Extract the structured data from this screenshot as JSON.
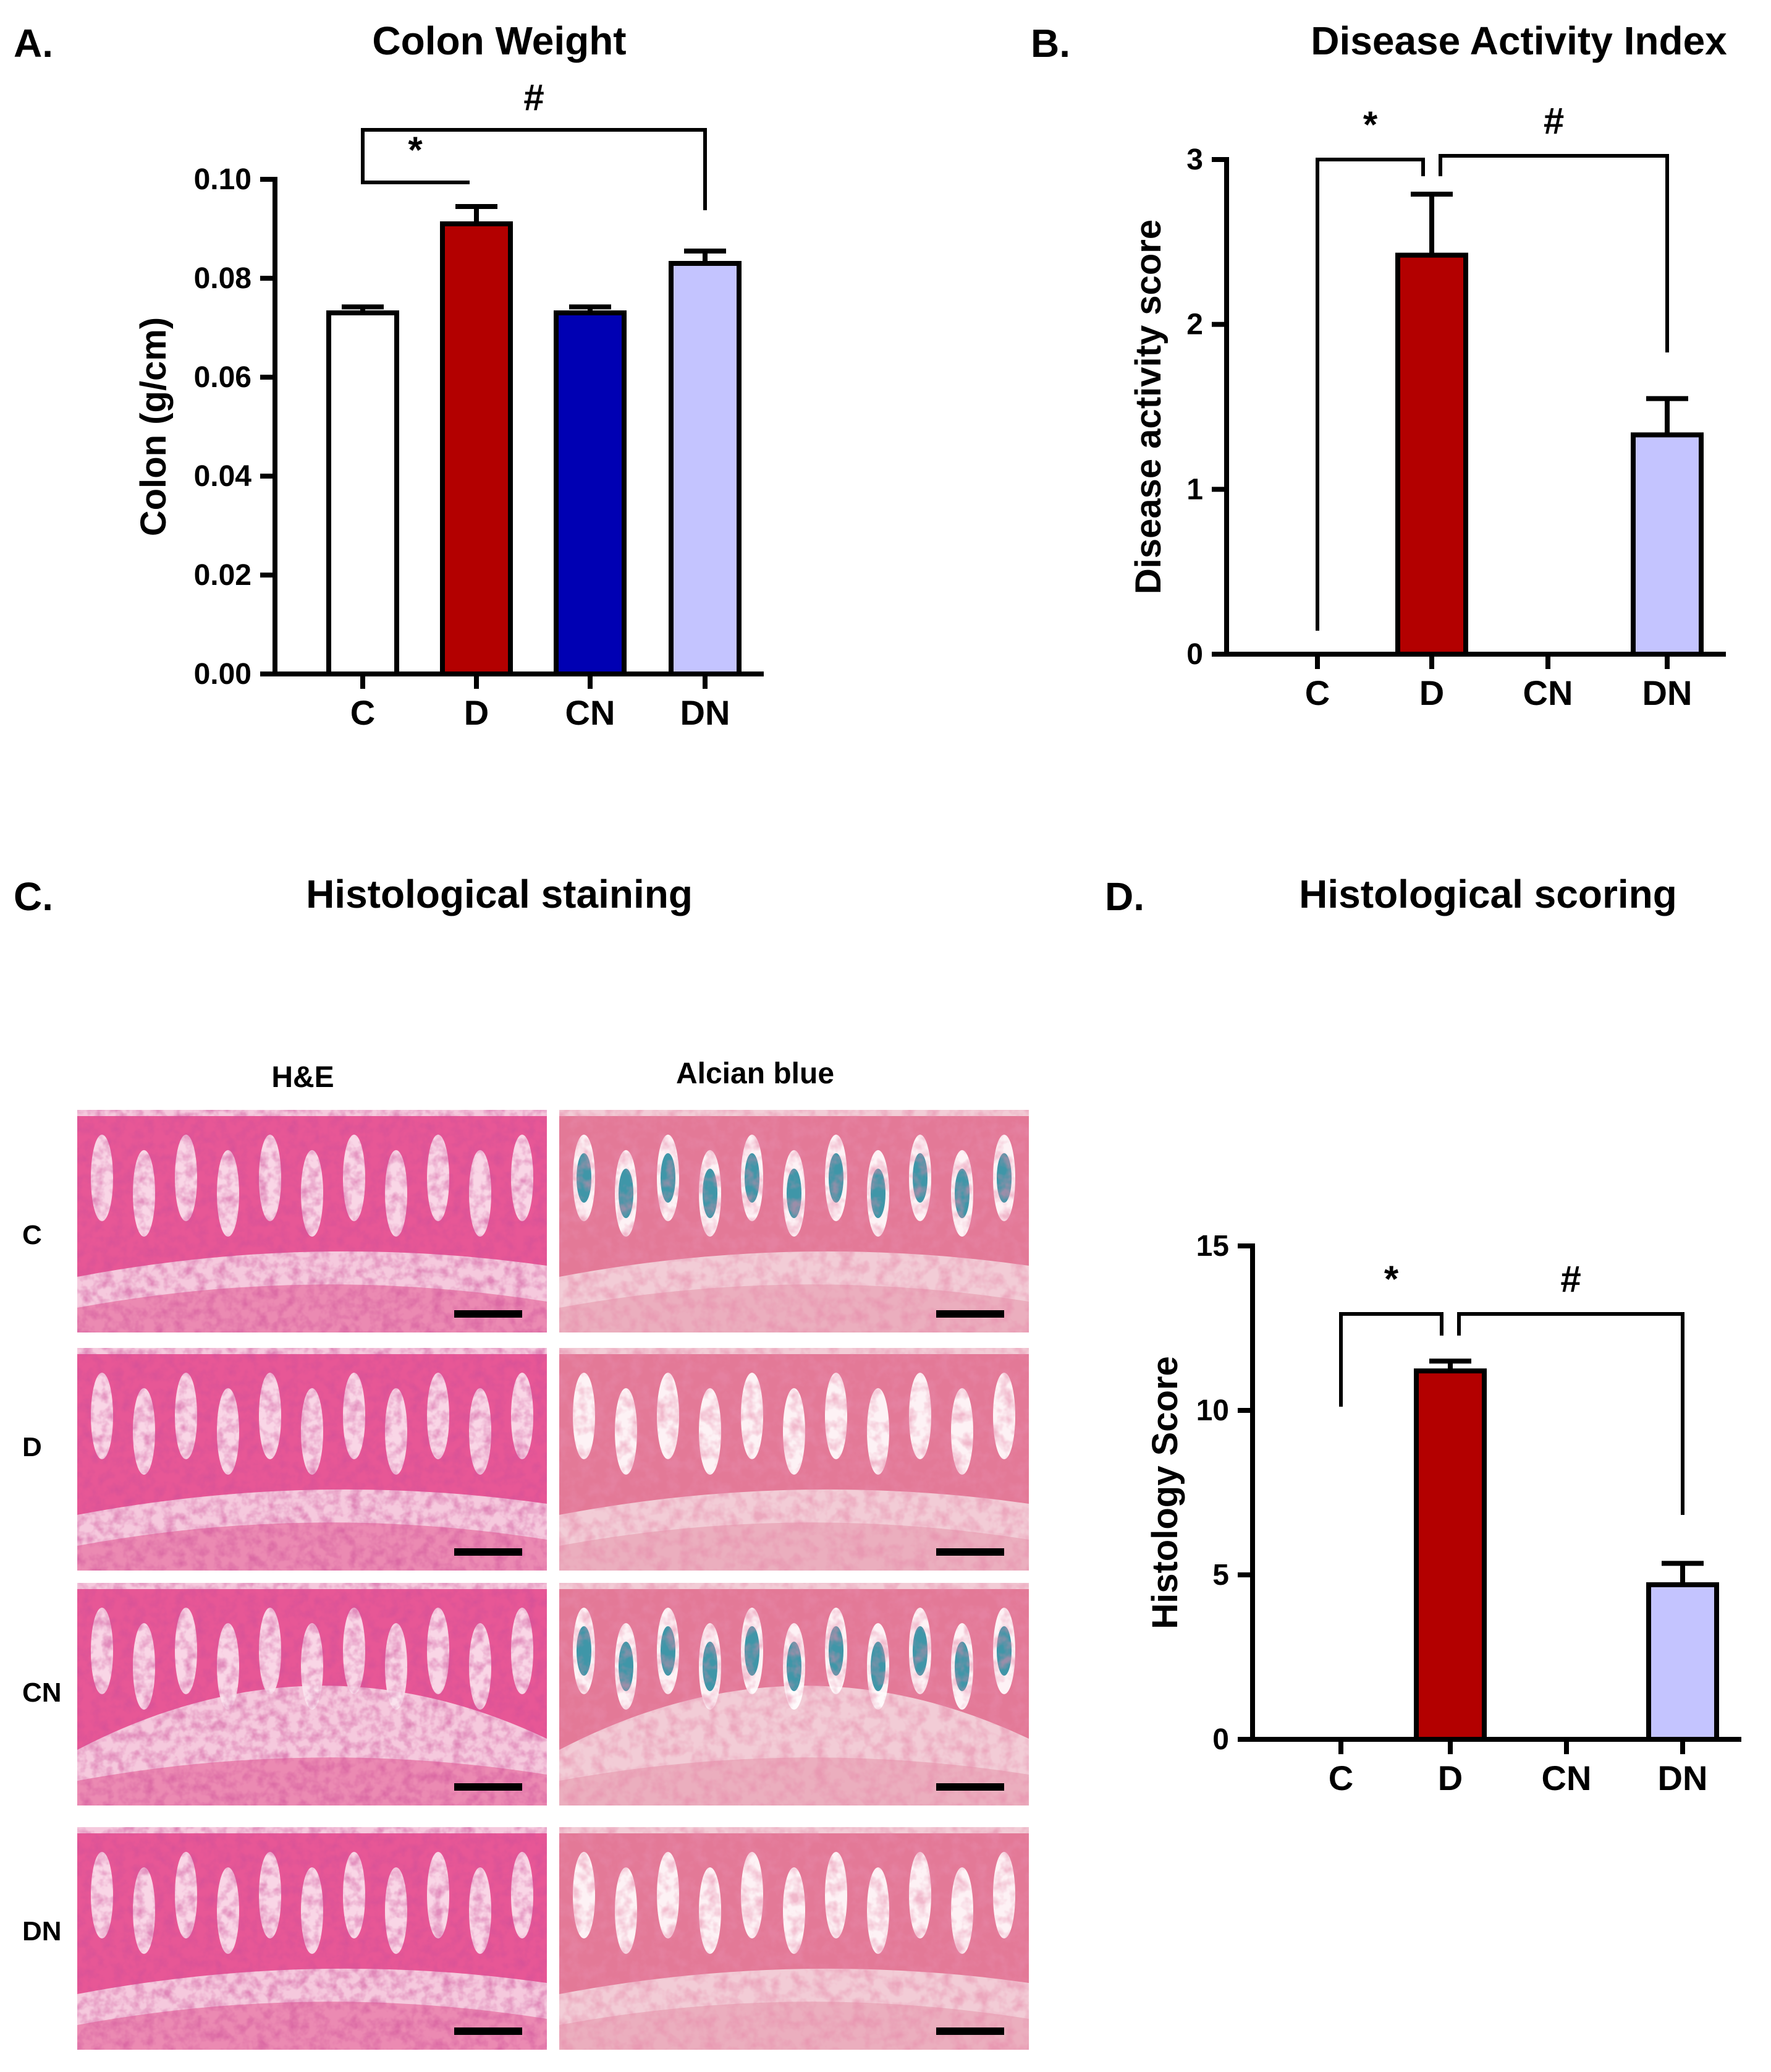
{
  "panels": {
    "A": {
      "letter": "A."
    },
    "B": {
      "letter": "B."
    },
    "C": {
      "letter": "C.",
      "title": "Histological staining"
    },
    "D": {
      "letter": "D.",
      "title": "Histological scoring"
    }
  },
  "histology": {
    "columns": [
      "H&E",
      "Alcian blue"
    ],
    "rows": [
      "C",
      "D",
      "CN",
      "DN"
    ],
    "scale_bar_color": "#000000"
  },
  "colors": {
    "C": "#ffffff",
    "D": "#b30000",
    "CN": "#0000b3",
    "DN": "#c4c4ff",
    "he_stain": "#e4438a",
    "he_background": "#f5c9dd",
    "alcian_stain": "#2a8ca0",
    "alcian_background": "#f2ccd6"
  },
  "chart_data": [
    {
      "id": "A",
      "type": "bar",
      "title": "Colon Weight",
      "xlabel": "",
      "ylabel": "Colon (g/cm)",
      "categories": [
        "C",
        "D",
        "CN",
        "DN"
      ],
      "values": [
        0.073,
        0.091,
        0.073,
        0.083
      ],
      "errors": [
        0.0012,
        0.0035,
        0.0012,
        0.0025
      ],
      "ylim": [
        0,
        0.1
      ],
      "yticks": [
        0.0,
        0.02,
        0.04,
        0.06,
        0.08,
        0.1
      ],
      "ytick_labels": [
        "0.00",
        "0.02",
        "0.04",
        "0.06",
        "0.08",
        "0.10"
      ],
      "significance": [
        {
          "label": "*",
          "from": "C",
          "to": "D"
        },
        {
          "label": "#",
          "from": "C",
          "to": "DN"
        }
      ]
    },
    {
      "id": "B",
      "type": "bar",
      "title": "Disease Activity Index",
      "xlabel": "",
      "ylabel": "Disease activity score",
      "categories": [
        "C",
        "D",
        "CN",
        "DN"
      ],
      "values": [
        0,
        2.42,
        0,
        1.33
      ],
      "errors": [
        0,
        0.37,
        0,
        0.22
      ],
      "ylim": [
        0,
        3
      ],
      "yticks": [
        0,
        1,
        2,
        3
      ],
      "ytick_labels": [
        "0",
        "1",
        "2",
        "3"
      ],
      "significance": [
        {
          "label": "*",
          "from": "C",
          "to": "D"
        },
        {
          "label": "#",
          "from": "D",
          "to": "DN"
        }
      ]
    },
    {
      "id": "D",
      "type": "bar",
      "title": "",
      "xlabel": "",
      "ylabel": "Histology Score",
      "categories": [
        "C",
        "D",
        "CN",
        "DN"
      ],
      "values": [
        0,
        11.2,
        0,
        4.7
      ],
      "errors": [
        0,
        0.3,
        0,
        0.65
      ],
      "ylim": [
        0,
        15
      ],
      "yticks": [
        0,
        5,
        10,
        15
      ],
      "ytick_labels": [
        "0",
        "5",
        "10",
        "15"
      ],
      "significance": [
        {
          "label": "*",
          "from": "C",
          "to": "D"
        },
        {
          "label": "#",
          "from": "D",
          "to": "DN"
        }
      ]
    }
  ]
}
